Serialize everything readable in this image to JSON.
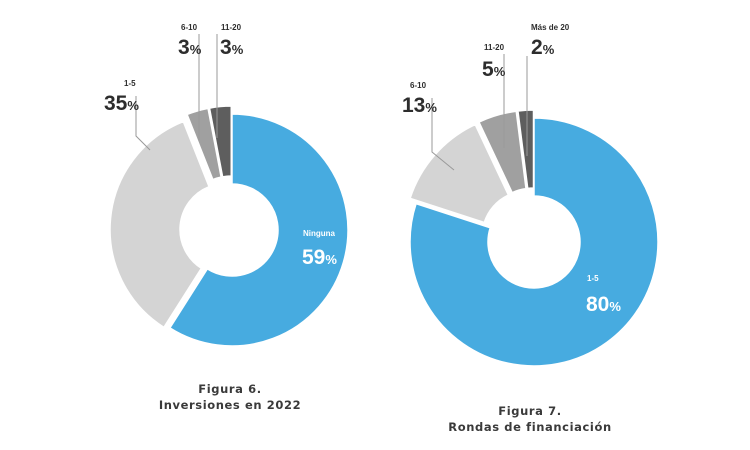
{
  "chart_data": [
    {
      "type": "pie",
      "variant": "donut",
      "caption_number": "Figura 6.",
      "caption_title": "Inversiones en 2022",
      "slices": [
        {
          "label": "Ninguna",
          "value": 59,
          "color": "#47abe0"
        },
        {
          "label": "1-5",
          "value": 35,
          "color": "#d4d4d4"
        },
        {
          "label": "6-10",
          "value": 3,
          "color": "#a0a0a0"
        },
        {
          "label": "11-20",
          "value": 3,
          "color": "#5e5e5e"
        }
      ]
    },
    {
      "type": "pie",
      "variant": "donut",
      "caption_number": "Figura 7.",
      "caption_title": "Rondas de financiación",
      "slices": [
        {
          "label": "1-5",
          "value": 80,
          "color": "#47abe0"
        },
        {
          "label": "6-10",
          "value": 13,
          "color": "#d4d4d4"
        },
        {
          "label": "11-20",
          "value": 5,
          "color": "#a0a0a0"
        },
        {
          "label": "Más de 20",
          "value": 2,
          "color": "#5e5e5e"
        }
      ]
    }
  ]
}
